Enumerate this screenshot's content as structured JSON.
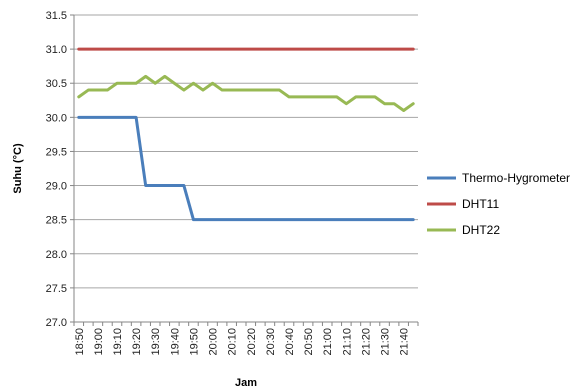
{
  "chart_data": {
    "type": "line",
    "title": "",
    "xlabel": "Jam",
    "ylabel": "Suhu (°C)",
    "ylim": [
      27.0,
      31.5
    ],
    "ystep": 0.5,
    "y_tick_labels": [
      "27.0",
      "27.5",
      "28.0",
      "28.5",
      "29.0",
      "29.5",
      "30.0",
      "30.5",
      "31.0",
      "31.5"
    ],
    "x_tick_labels": [
      "18:50",
      "19:00",
      "19:10",
      "19:20",
      "19:30",
      "19:40",
      "19:50",
      "20:00",
      "20:10",
      "20:20",
      "20:30",
      "20:40",
      "20:50",
      "21:00",
      "21:10",
      "21:20",
      "21:30",
      "21:40"
    ],
    "x": [
      "18:50",
      "18:55",
      "19:00",
      "19:05",
      "19:10",
      "19:15",
      "19:20",
      "19:25",
      "19:30",
      "19:35",
      "19:40",
      "19:45",
      "19:50",
      "19:55",
      "20:00",
      "20:05",
      "20:10",
      "20:15",
      "20:20",
      "20:25",
      "20:30",
      "20:35",
      "20:40",
      "20:45",
      "20:50",
      "20:55",
      "21:00",
      "21:05",
      "21:10",
      "21:15",
      "21:20",
      "21:25",
      "21:30",
      "21:35",
      "21:40",
      "21:45"
    ],
    "grid": true,
    "legend_position": "right",
    "series": [
      {
        "name": "Thermo-Hygrometer",
        "color": "#4a7ebb",
        "values": [
          30.0,
          30.0,
          30.0,
          30.0,
          30.0,
          30.0,
          30.0,
          29.0,
          29.0,
          29.0,
          29.0,
          29.0,
          28.5,
          28.5,
          28.5,
          28.5,
          28.5,
          28.5,
          28.5,
          28.5,
          28.5,
          28.5,
          28.5,
          28.5,
          28.5,
          28.5,
          28.5,
          28.5,
          28.5,
          28.5,
          28.5,
          28.5,
          28.5,
          28.5,
          28.5,
          28.5
        ]
      },
      {
        "name": "DHT11",
        "color": "#be4b48",
        "values": [
          31.0,
          31.0,
          31.0,
          31.0,
          31.0,
          31.0,
          31.0,
          31.0,
          31.0,
          31.0,
          31.0,
          31.0,
          31.0,
          31.0,
          31.0,
          31.0,
          31.0,
          31.0,
          31.0,
          31.0,
          31.0,
          31.0,
          31.0,
          31.0,
          31.0,
          31.0,
          31.0,
          31.0,
          31.0,
          31.0,
          31.0,
          31.0,
          31.0,
          31.0,
          31.0,
          31.0
        ]
      },
      {
        "name": "DHT22",
        "color": "#98b954",
        "values": [
          30.3,
          30.4,
          30.4,
          30.4,
          30.5,
          30.5,
          30.5,
          30.6,
          30.5,
          30.6,
          30.5,
          30.4,
          30.5,
          30.4,
          30.5,
          30.4,
          30.4,
          30.4,
          30.4,
          30.4,
          30.4,
          30.4,
          30.3,
          30.3,
          30.3,
          30.3,
          30.3,
          30.3,
          30.2,
          30.3,
          30.3,
          30.3,
          30.2,
          30.2,
          30.1,
          30.2
        ]
      }
    ]
  }
}
